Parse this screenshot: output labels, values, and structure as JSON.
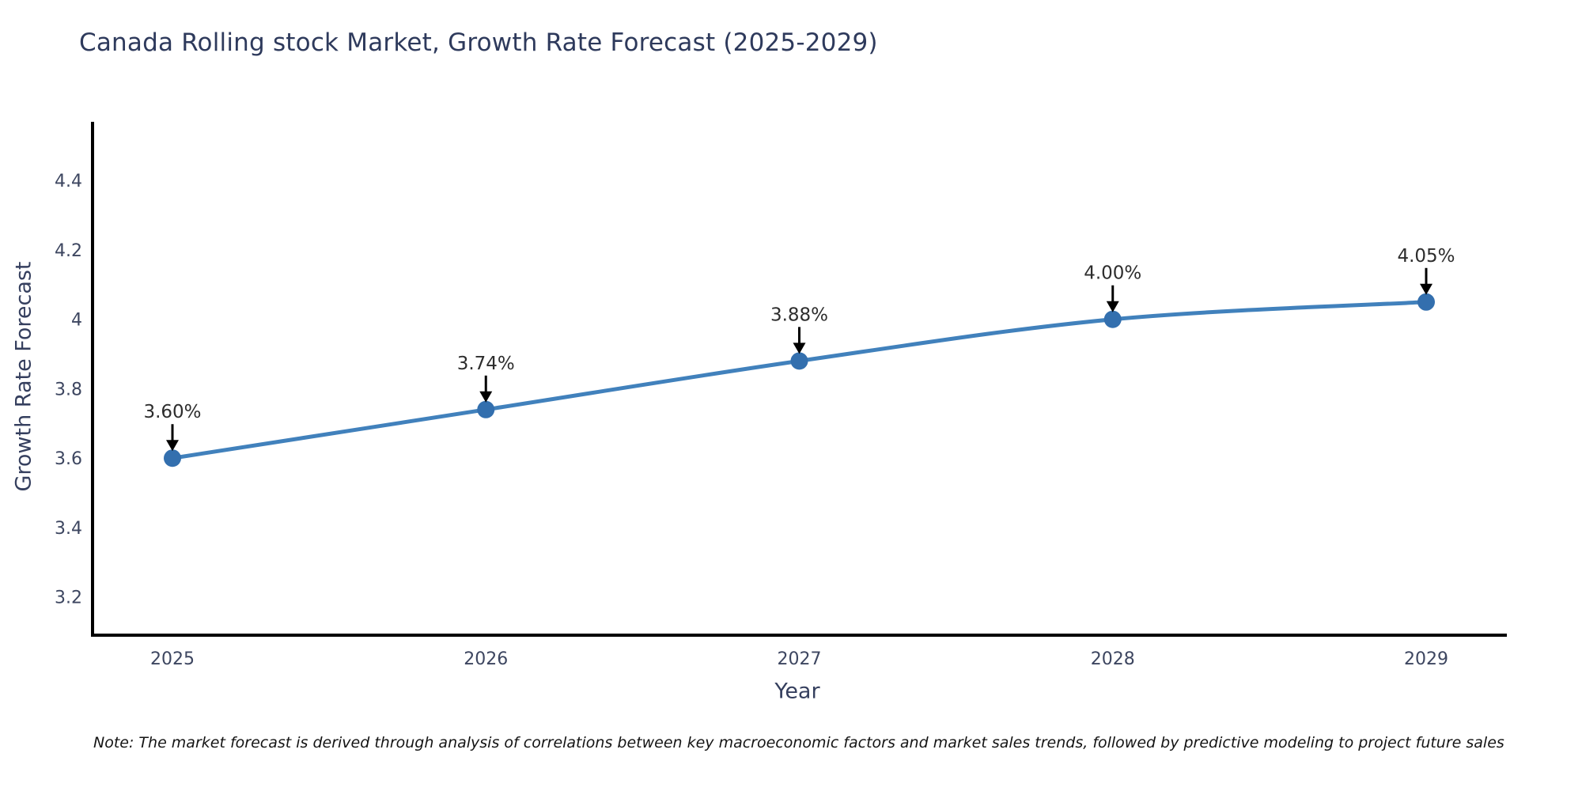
{
  "page": {
    "background": "#ffffff"
  },
  "chart_data": {
    "type": "line",
    "title": "Canada Rolling stock Market, Growth Rate Forecast (2025-2029)",
    "xlabel": "Year",
    "ylabel": "Growth Rate Forecast",
    "x": [
      2025,
      2026,
      2027,
      2028,
      2029
    ],
    "series": [
      {
        "name": "Growth Rate Forecast",
        "values": [
          3.6,
          3.74,
          3.88,
          4.0,
          4.05
        ]
      }
    ],
    "point_labels": [
      "3.60%",
      "3.74%",
      "3.88%",
      "4.00%",
      "4.05%"
    ],
    "x_tick_labels": [
      "2025",
      "2026",
      "2027",
      "2028",
      "2029"
    ],
    "y_tick_values": [
      3.2,
      3.4,
      3.6,
      3.8,
      4.0,
      4.2,
      4.4
    ],
    "y_tick_labels": [
      "3.2",
      "3.4",
      "3.6",
      "3.8",
      "4",
      "4.2",
      "4.4"
    ],
    "ylim": [
      3.09,
      4.56
    ],
    "grid": false,
    "legend_position": "none",
    "marker_style": "circle",
    "annotation_style": "down-arrow",
    "colors": {
      "line": "#4181bc",
      "marker": "#336fae",
      "annotation_arrow": "#000000",
      "annotation_text": "#2d2d2d",
      "axis_line": "#000000",
      "tick_text": "#3d4660"
    }
  },
  "note": {
    "text": "Note: The market forecast is derived through analysis of correlations between key macroeconomic factors and market sales trends, followed by predictive modeling to project future sales"
  }
}
